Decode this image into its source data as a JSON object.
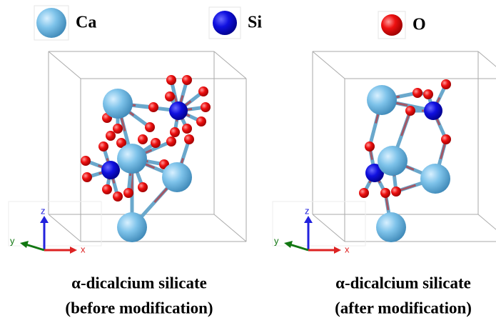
{
  "legend": {
    "items": [
      {
        "label": "Ca"
      },
      {
        "label": "Si"
      },
      {
        "label": "O"
      }
    ]
  },
  "panels": [
    {
      "axes": {
        "z": "z",
        "y": "y",
        "x": "x"
      },
      "caption": {
        "line1": "α-dicalcium silicate",
        "line2": "(before modification)"
      }
    },
    {
      "axes": {
        "z": "z",
        "y": "y",
        "x": "x"
      },
      "caption": {
        "line1": "α-dicalcium silicate",
        "line2": "(after modification)"
      }
    }
  ]
}
